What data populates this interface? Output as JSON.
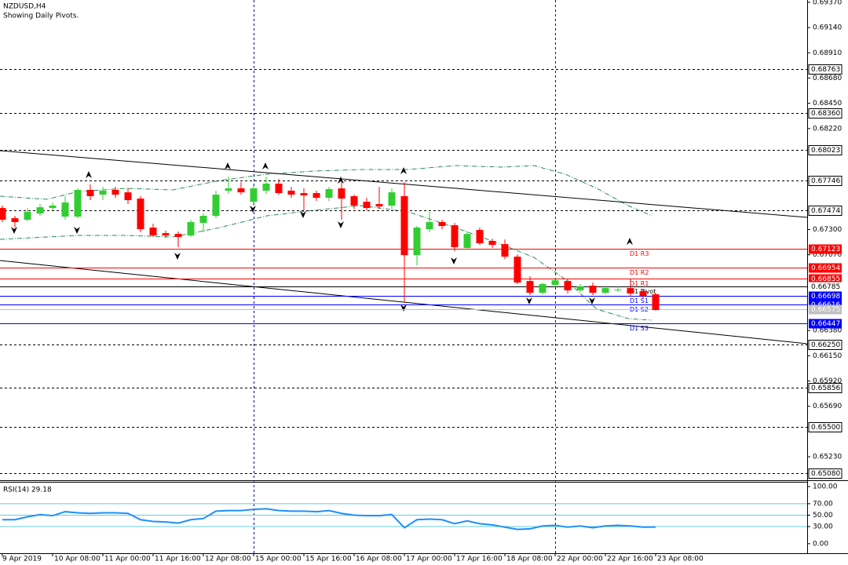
{
  "chart_data": {
    "type": "candlestick",
    "title": "NZDUSD,H4",
    "subtitle": "Showing Daily Pivots.",
    "categories": [
      "9 Apr 2019",
      null,
      null,
      null,
      "10 Apr 08:00",
      null,
      null,
      null,
      "11 Apr 00:00",
      null,
      null,
      null,
      "11 Apr 16:00",
      null,
      null,
      null,
      "12 Apr 08:00",
      null,
      null,
      null,
      "15 Apr 00:00",
      null,
      null,
      null,
      "15 Apr 16:00",
      null,
      null,
      null,
      "16 Apr 08:00",
      null,
      null,
      null,
      "17 Apr 00:00",
      null,
      null,
      null,
      "17 Apr 16:00",
      null,
      null,
      null,
      "18 Apr 08:00",
      null,
      null,
      null,
      "22 Apr 00:00",
      null,
      null,
      null,
      "22 Apr 16:00",
      null,
      null,
      null,
      "23 Apr 08:00"
    ],
    "open": [
      0.67496,
      0.67403,
      0.67389,
      0.67446,
      0.67496,
      0.67418,
      0.67418,
      0.67661,
      0.67618,
      0.67661,
      0.67639,
      0.67582,
      0.67318,
      0.67267,
      0.6726,
      0.67246,
      0.6736,
      0.67425,
      0.67654,
      0.67675,
      0.67553,
      0.67654,
      0.67718,
      0.67654,
      0.67632,
      0.67632,
      0.67589,
      0.67675,
      0.67604,
      0.67553,
      0.67532,
      0.67518,
      0.67604,
      0.67067,
      0.67303,
      0.67368,
      0.67339,
      0.67132,
      0.67296,
      0.67196,
      0.67167,
      0.67053,
      0.66831,
      0.66724,
      0.66796,
      0.66831,
      0.66746,
      0.66788,
      0.66724,
      0.66746,
      0.66767,
      0.66738,
      0.6671
    ],
    "high": [
      0.67518,
      0.67425,
      0.67496,
      0.67532,
      0.67546,
      0.67604,
      0.67675,
      0.67711,
      0.67689,
      0.67689,
      0.67675,
      0.67604,
      0.67353,
      0.67289,
      0.67282,
      0.67389,
      0.67446,
      0.67654,
      0.67782,
      0.67732,
      0.67704,
      0.67782,
      0.67761,
      0.67689,
      0.67675,
      0.67654,
      0.67689,
      0.67732,
      0.67618,
      0.67589,
      0.67689,
      0.67675,
      0.67732,
      0.67332,
      0.67461,
      0.67389,
      0.6736,
      0.67282,
      0.67318,
      0.67217,
      0.6721,
      0.67074,
      0.66874,
      0.66817,
      0.6686,
      0.66853,
      0.66803,
      0.66817,
      0.66781,
      0.66781,
      0.66853,
      0.6676,
      0.66724
    ],
    "low": [
      0.67368,
      0.67318,
      0.67375,
      0.67425,
      0.67475,
      0.67389,
      0.67403,
      0.67568,
      0.67568,
      0.67589,
      0.67532,
      0.67275,
      0.67232,
      0.67224,
      0.67139,
      0.67232,
      0.67275,
      0.67403,
      0.67625,
      0.67618,
      0.67518,
      0.67625,
      0.67618,
      0.67589,
      0.67475,
      0.67561,
      0.67561,
      0.67389,
      0.67489,
      0.67475,
      0.67489,
      0.67489,
      0.66638,
      0.66974,
      0.67275,
      0.67303,
      0.67103,
      0.67117,
      0.6716,
      0.67132,
      0.67031,
      0.66803,
      0.66703,
      0.6671,
      0.66774,
      0.66717,
      0.66731,
      0.66703,
      0.6671,
      0.66731,
      0.66688,
      0.66674,
      0.6656
    ],
    "close": [
      0.67389,
      0.67368,
      0.67461,
      0.67503,
      0.67518,
      0.67546,
      0.67661,
      0.67604,
      0.67654,
      0.67618,
      0.67568,
      0.67303,
      0.67246,
      0.67246,
      0.67232,
      0.67368,
      0.67425,
      0.67618,
      0.67675,
      0.67639,
      0.67675,
      0.67718,
      0.67632,
      0.67618,
      0.67611,
      0.67589,
      0.67668,
      0.67582,
      0.67518,
      0.67496,
      0.6751,
      0.67639,
      0.67067,
      0.67318,
      0.67368,
      0.67332,
      0.67139,
      0.6726,
      0.67175,
      0.6716,
      0.67053,
      0.66817,
      0.66724,
      0.66803,
      0.66838,
      0.66746,
      0.66781,
      0.66724,
      0.66767,
      0.66753,
      0.66717,
      0.66695,
      0.66567
    ],
    "up_color": "#32cd32",
    "down_color": "#ff0000",
    "ylim": [
      0.65016,
      0.69391
    ],
    "yticks": [
      {
        "value": 0.6937,
        "label": "0.69370"
      },
      {
        "value": 0.6914,
        "label": "0.69140"
      },
      {
        "value": 0.6891,
        "label": "0.68910"
      },
      {
        "value": 0.6868,
        "label": "0.68680"
      },
      {
        "value": 0.6845,
        "label": "0.68450"
      },
      {
        "value": 0.6822,
        "label": "0.68220"
      },
      {
        "value": 0.673,
        "label": "0.67300"
      },
      {
        "value": 0.6707,
        "label": "0.67070"
      },
      {
        "value": 0.6638,
        "label": "0.66380"
      },
      {
        "value": 0.6615,
        "label": "0.66150"
      },
      {
        "value": 0.6592,
        "label": "0.65920"
      },
      {
        "value": 0.6569,
        "label": "0.65690"
      },
      {
        "value": 0.6523,
        "label": "0.65230"
      }
    ],
    "levels": [
      {
        "value": 0.68763,
        "label": "0.68763"
      },
      {
        "value": 0.6836,
        "label": "0.68360"
      },
      {
        "value": 0.68023,
        "label": "0.68023"
      },
      {
        "value": 0.67746,
        "label": "0.67746"
      },
      {
        "value": 0.67474,
        "label": "0.67474"
      },
      {
        "value": 0.6625,
        "label": "0.66250"
      },
      {
        "value": 0.65856,
        "label": "0.65856"
      },
      {
        "value": 0.655,
        "label": "0.65500"
      },
      {
        "value": 0.6508,
        "label": "0.65080"
      }
    ],
    "pivots": [
      {
        "name": "D1 R3",
        "value": 0.67123,
        "label": "0.67123",
        "color": "#ff0000"
      },
      {
        "name": "D1 R2",
        "value": 0.66954,
        "label": "0.66954",
        "color": "#ff0000"
      },
      {
        "name": "D1 R1",
        "value": 0.66855,
        "label": "0.66855",
        "color": "#ff0000"
      },
      {
        "name": "D1 Pivot",
        "value": 0.66785,
        "label": "0.66785",
        "color": "#000000"
      },
      {
        "name": "D1 S1",
        "value": 0.66698,
        "label": "0.66698",
        "color": "#0000ff"
      },
      {
        "name": "D1 S2",
        "value": 0.66616,
        "label": "0.66616",
        "color": "#0000ff"
      },
      {
        "name": "D1 S3",
        "value": 0.66447,
        "label": "0.66447",
        "color": "#0000ff"
      }
    ],
    "current_price": {
      "value": 0.66575,
      "label": "0.66575"
    },
    "rsi": {
      "title": "RSI(14) 29.18",
      "color": "#1e90ff",
      "values": [
        42,
        42,
        47,
        51,
        49,
        56,
        54,
        53,
        54,
        54,
        53,
        42,
        39,
        38,
        36,
        42,
        44,
        57,
        58,
        58,
        60,
        61,
        58,
        57,
        57,
        56,
        58,
        53,
        50,
        49,
        49,
        51,
        28,
        42,
        43,
        42,
        35,
        40,
        35,
        33,
        29,
        25,
        26,
        31,
        32,
        29,
        31,
        28,
        31,
        32,
        31,
        29,
        29.18
      ],
      "ylim": [
        -16.7,
        108.3
      ],
      "yticks": [
        {
          "value": 100,
          "label": "100.00"
        },
        {
          "value": 70,
          "label": "70.00"
        },
        {
          "value": 50,
          "label": "50.00"
        },
        {
          "value": 30,
          "label": "30.00"
        },
        {
          "value": 0,
          "label": "0.00"
        }
      ],
      "levels": [
        70,
        50,
        30
      ]
    }
  }
}
